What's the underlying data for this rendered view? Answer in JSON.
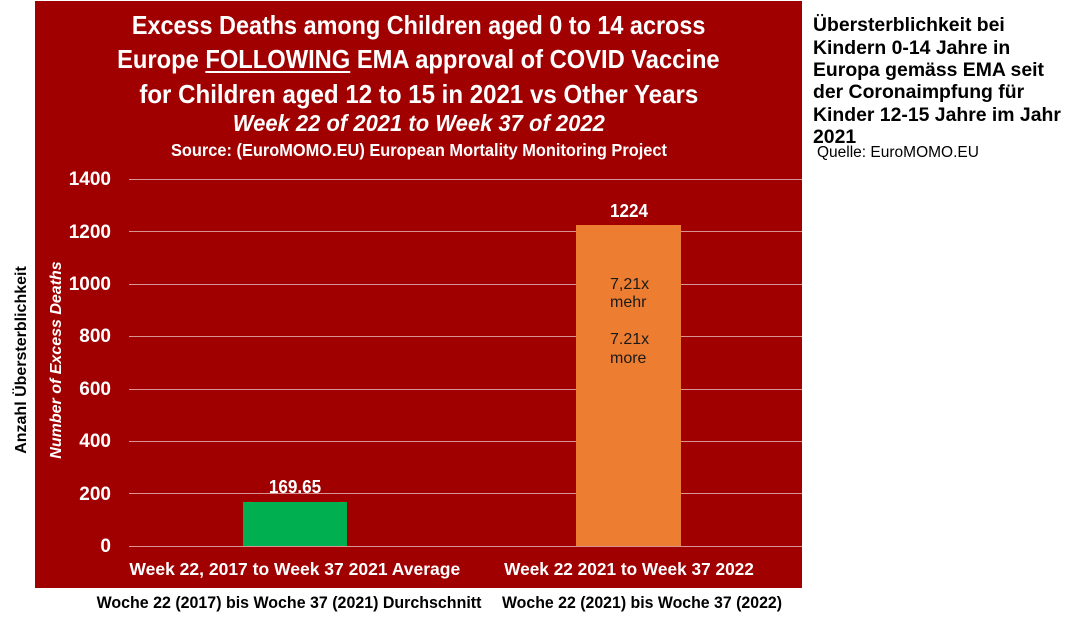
{
  "chart_data": {
    "type": "bar",
    "title": "Excess Deaths among Children aged 0 to 14 across Europe FOLLOWING EMA approval of COVID Vaccine for Children aged 12 to 15 in 2021 vs Other Years",
    "title_lines": [
      "Excess Deaths among Children aged 0 to 14 across",
      "Europe FOLLOWING EMA approval of COVID Vaccine",
      "for Children aged 12 to 15 in 2021 vs Other Years"
    ],
    "title_line2_parts": {
      "prefix": "Europe ",
      "underlined": "FOLLOWING",
      "suffix": " EMA approval of COVID Vaccine"
    },
    "subtitle": "Week 22 of 2021 to Week 37 of 2022",
    "source": "Source: (EuroMOMO.EU) European Mortality Monitoring Project",
    "ylabel": "Number of Excess Deaths",
    "ylabel_left": "Anzahl Übersterblichkeit",
    "categories": [
      "Week 22, 2017 to Week 37 2021 Average",
      "Week 22 2021 to Week 37 2022"
    ],
    "values": [
      169.65,
      1224
    ],
    "value_labels": [
      "169.65",
      "1224"
    ],
    "bar_colors": [
      "#00B050",
      "#ED7D31"
    ],
    "bar_annotation_lines": [
      "7,21x",
      "mehr",
      "",
      "7.21x",
      "more"
    ],
    "yticks": [
      0,
      200,
      400,
      600,
      800,
      1000,
      1200,
      1400
    ],
    "ylim": [
      0,
      1400
    ],
    "grid": true,
    "legend_position": "none",
    "background_color": "#A00000",
    "gridline_color": "#D9D9D9",
    "text_color": "#FFFFFF"
  },
  "bottom_labels": [
    "Woche 22 (2017) bis Woche 37 (2021) Durchschnitt",
    "Woche 22 (2021) bis Woche 37 (2022)"
  ],
  "right_panel": {
    "title": "Übersterblichkeit bei Kindern 0-14 Jahre in Europa gemäss EMA seit der Coronaimpfung für Kinder 12-15 Jahre im Jahr 2021",
    "title_lines": [
      "Übersterblichkeit bei",
      "Kindern 0-14 Jahre in",
      "Europa gemäss EMA seit",
      "der Coronaimpfung für",
      "Kinder 12-15 Jahre im Jahr",
      "2021"
    ],
    "source": "Quelle: EuroMOMO.EU"
  }
}
